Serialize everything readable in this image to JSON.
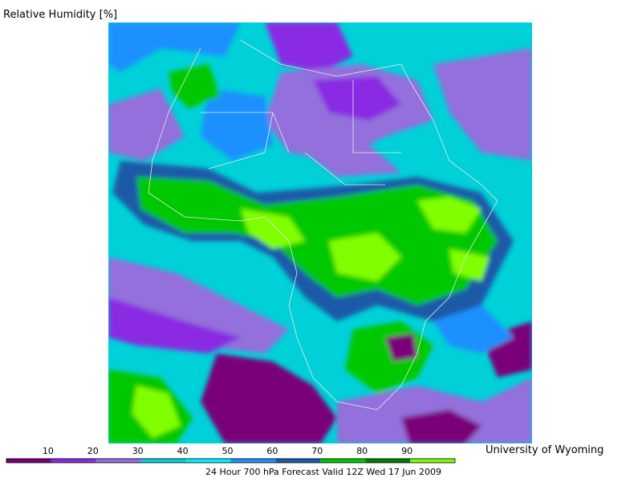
{
  "title": "Relative Humidity [%]",
  "colorbar": {
    "ticks": [
      10,
      20,
      30,
      40,
      50,
      60,
      70,
      80,
      90
    ],
    "colors": [
      "#7a007a",
      "#8a2be2",
      "#9370db",
      "#00d0d8",
      "#00f0ff",
      "#1e90ff",
      "#1c5aa8",
      "#00c800",
      "#007d00",
      "#80ff00"
    ]
  },
  "credit": "University of Wyoming",
  "caption": "24 Hour 700 hPa Forecast Valid 12Z Wed 17 Jun 2009"
}
